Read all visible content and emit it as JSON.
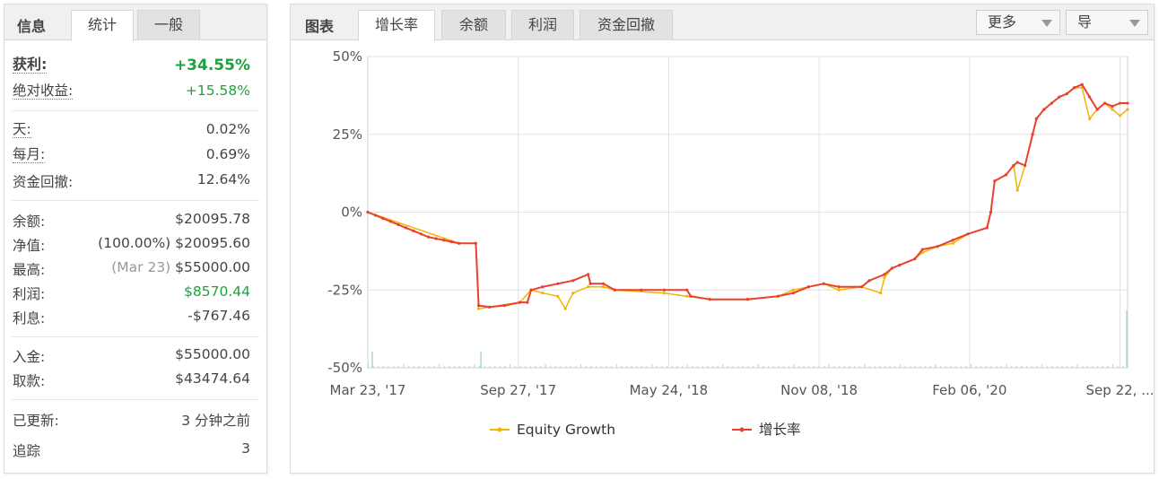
{
  "info_panel": {
    "title": "信息",
    "tabs": [
      {
        "label": "统计",
        "active": true
      },
      {
        "label": "一般",
        "active": false
      }
    ],
    "profit": {
      "label": "获利:",
      "value": "+34.55%"
    },
    "absolute_gain": {
      "label": "绝对收益:",
      "value": "+15.58%"
    },
    "daily": {
      "label": "天:",
      "value": "0.02%"
    },
    "monthly": {
      "label": "每月:",
      "value": "0.69%"
    },
    "drawdown": {
      "label": "资金回撤:",
      "value": "12.64%"
    },
    "balance": {
      "label": "余额:",
      "value": "$20095.78"
    },
    "equity": {
      "label": "净值:",
      "value_pct": "(100.00%)",
      "value": "$20095.60"
    },
    "highest": {
      "label": "最高:",
      "value_date": "(Mar 23)",
      "value": "$55000.00"
    },
    "profit_amount": {
      "label": "利润:",
      "value": "$8570.44"
    },
    "interest": {
      "label": "利息:",
      "value": "-$767.46"
    },
    "deposits": {
      "label": "入金:",
      "value": "$55000.00"
    },
    "withdrawals": {
      "label": "取款:",
      "value": "$43474.64"
    },
    "updated": {
      "label": "已更新:",
      "value": "3 分钟之前"
    },
    "tracking": {
      "label": "追踪",
      "value": "3"
    }
  },
  "chart_panel": {
    "title": "图表",
    "tabs": [
      {
        "label": "增长率",
        "active": true
      },
      {
        "label": "余额",
        "active": false
      },
      {
        "label": "利润",
        "active": false
      },
      {
        "label": "资金回撤",
        "active": false
      }
    ],
    "more_dropdown": "更多",
    "export_dropdown": "导"
  },
  "colors": {
    "growth": "#e8412f",
    "equity": "#f4b400",
    "volume": "#a9d9c4",
    "green": "#1ca23c"
  },
  "chart_data": {
    "type": "line",
    "y_tick_labels": [
      "50%",
      "25%",
      "0%",
      "-25%",
      "-50%"
    ],
    "y_ticks": [
      50,
      25,
      0,
      -25,
      -50
    ],
    "ylim": [
      -50,
      50
    ],
    "x_tick_labels": [
      "Mar 23, '17",
      "Sep 27, '17",
      "May 24, '18",
      "Nov 08, '18",
      "Feb 06, '20",
      "Sep 22, ..."
    ],
    "x_ticks": [
      0,
      0.198,
      0.396,
      0.594,
      0.792,
      0.99
    ],
    "grid": true,
    "legend": "bottom",
    "series": [
      {
        "name": "增长率",
        "points": [
          [
            0,
            0
          ],
          [
            0.01,
            -1
          ],
          [
            0.02,
            -2
          ],
          [
            0.03,
            -3
          ],
          [
            0.04,
            -4
          ],
          [
            0.05,
            -5
          ],
          [
            0.06,
            -6
          ],
          [
            0.07,
            -7
          ],
          [
            0.08,
            -8
          ],
          [
            0.09,
            -8.5
          ],
          [
            0.1,
            -9
          ],
          [
            0.11,
            -9.5
          ],
          [
            0.12,
            -10
          ],
          [
            0.1421,
            -10
          ],
          [
            0.1459,
            -30
          ],
          [
            0.16,
            -30.5
          ],
          [
            0.18,
            -30
          ],
          [
            0.2,
            -29
          ],
          [
            0.21,
            -29
          ],
          [
            0.215,
            -25
          ],
          [
            0.23,
            -24
          ],
          [
            0.25,
            -23
          ],
          [
            0.27,
            -22
          ],
          [
            0.29,
            -20
          ],
          [
            0.293,
            -23
          ],
          [
            0.31,
            -23
          ],
          [
            0.325,
            -25
          ],
          [
            0.36,
            -25
          ],
          [
            0.39,
            -25
          ],
          [
            0.42,
            -25
          ],
          [
            0.425,
            -27
          ],
          [
            0.45,
            -28
          ],
          [
            0.5,
            -28
          ],
          [
            0.54,
            -27
          ],
          [
            0.56,
            -26
          ],
          [
            0.58,
            -24
          ],
          [
            0.6,
            -23
          ],
          [
            0.62,
            -24
          ],
          [
            0.65,
            -24
          ],
          [
            0.66,
            -22
          ],
          [
            0.68,
            -20
          ],
          [
            0.69,
            -18
          ],
          [
            0.7,
            -17
          ],
          [
            0.72,
            -15
          ],
          [
            0.73,
            -12
          ],
          [
            0.75,
            -11
          ],
          [
            0.77,
            -9
          ],
          [
            0.79,
            -7
          ],
          [
            0.815,
            -5
          ],
          [
            0.82,
            0
          ],
          [
            0.825,
            10
          ],
          [
            0.84,
            12
          ],
          [
            0.85,
            15
          ],
          [
            0.855,
            16
          ],
          [
            0.865,
            15
          ],
          [
            0.875,
            25
          ],
          [
            0.88,
            30
          ],
          [
            0.89,
            33
          ],
          [
            0.9,
            35
          ],
          [
            0.91,
            37
          ],
          [
            0.92,
            38
          ],
          [
            0.93,
            40
          ],
          [
            0.94,
            41
          ],
          [
            0.95,
            37
          ],
          [
            0.96,
            33
          ],
          [
            0.97,
            35
          ],
          [
            0.98,
            34
          ],
          [
            0.99,
            35
          ],
          [
            1.0,
            35
          ]
        ]
      },
      {
        "name": "Equity Growth",
        "points": [
          [
            0,
            0
          ],
          [
            0.12,
            -10
          ],
          [
            0.1421,
            -10
          ],
          [
            0.1459,
            -31
          ],
          [
            0.2,
            -29
          ],
          [
            0.215,
            -25
          ],
          [
            0.23,
            -26
          ],
          [
            0.25,
            -27
          ],
          [
            0.26,
            -31
          ],
          [
            0.27,
            -26
          ],
          [
            0.29,
            -24
          ],
          [
            0.31,
            -24
          ],
          [
            0.325,
            -25
          ],
          [
            0.39,
            -26
          ],
          [
            0.42,
            -27
          ],
          [
            0.45,
            -28
          ],
          [
            0.5,
            -28
          ],
          [
            0.54,
            -27
          ],
          [
            0.56,
            -25
          ],
          [
            0.58,
            -24
          ],
          [
            0.6,
            -23
          ],
          [
            0.62,
            -25
          ],
          [
            0.65,
            -24
          ],
          [
            0.675,
            -26
          ],
          [
            0.68,
            -21
          ],
          [
            0.69,
            -18
          ],
          [
            0.7,
            -17
          ],
          [
            0.72,
            -15
          ],
          [
            0.73,
            -13
          ],
          [
            0.75,
            -11
          ],
          [
            0.77,
            -10
          ],
          [
            0.79,
            -7
          ],
          [
            0.815,
            -5
          ],
          [
            0.82,
            0
          ],
          [
            0.825,
            10
          ],
          [
            0.84,
            12
          ],
          [
            0.85,
            15
          ],
          [
            0.855,
            7
          ],
          [
            0.865,
            15
          ],
          [
            0.875,
            25
          ],
          [
            0.88,
            30
          ],
          [
            0.89,
            33
          ],
          [
            0.9,
            35
          ],
          [
            0.91,
            37
          ],
          [
            0.92,
            38
          ],
          [
            0.93,
            40
          ],
          [
            0.94,
            40
          ],
          [
            0.95,
            30
          ],
          [
            0.96,
            33
          ],
          [
            0.97,
            35
          ],
          [
            0.98,
            33
          ],
          [
            0.99,
            31
          ],
          [
            1.0,
            33
          ]
        ]
      }
    ]
  }
}
